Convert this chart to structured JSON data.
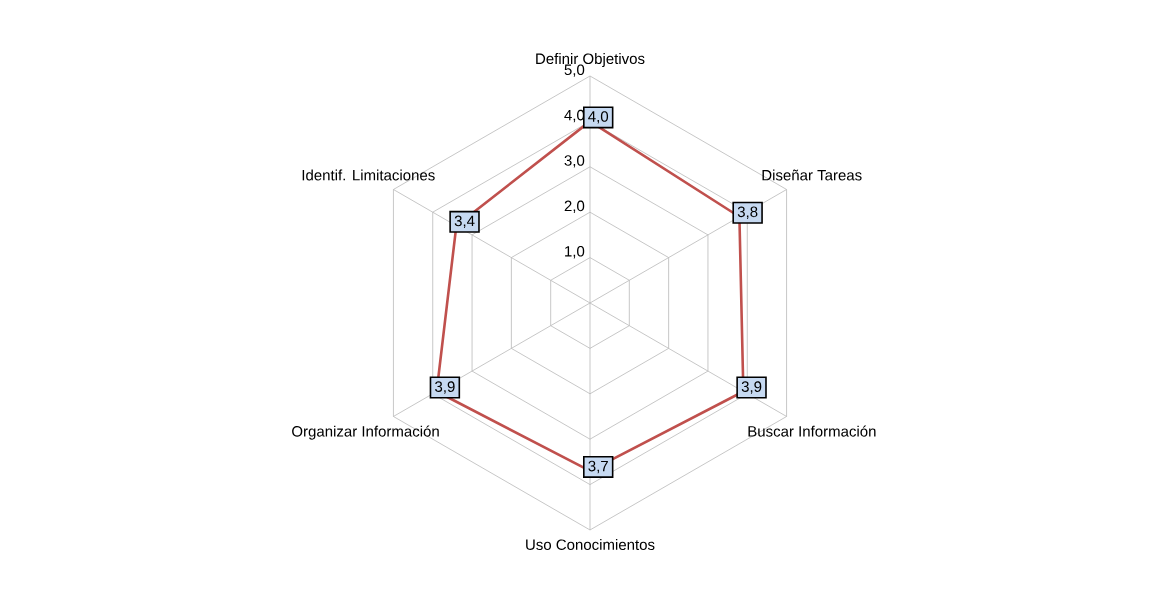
{
  "chart_data": {
    "type": "radar",
    "categories": [
      "Definir Objetivos",
      "Diseñar Tareas",
      "Buscar Información",
      "Uso Conocimientos",
      "Organizar Información",
      "Identif. Limitaciones"
    ],
    "series": [
      {
        "color": "#c0504d",
        "values": [
          4.0,
          3.8,
          3.9,
          3.7,
          3.9,
          3.4
        ],
        "value_labels": [
          "4,0",
          "3,8",
          "3,9",
          "3,7",
          "3,9",
          "3,4"
        ]
      }
    ],
    "ylim": [
      0,
      5
    ],
    "yticks": [
      {
        "value": 1,
        "label": "1,0"
      },
      {
        "value": 2,
        "label": "2,0"
      },
      {
        "value": 3,
        "label": "3,0"
      },
      {
        "value": 4,
        "label": "4,0"
      },
      {
        "value": 5,
        "label": "5,0"
      }
    ],
    "grid": true
  }
}
